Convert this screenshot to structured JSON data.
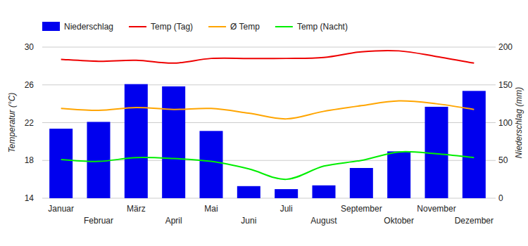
{
  "chart_data": {
    "type": "bar",
    "categories": [
      "Januar",
      "Februar",
      "März",
      "April",
      "Mai",
      "Juni",
      "Juli",
      "August",
      "September",
      "Oktober",
      "November",
      "Dezember"
    ],
    "series": [
      {
        "name": "Niederschlag",
        "type": "bar",
        "axis": "y2",
        "color": "#0000ee",
        "values": [
          92,
          101,
          151,
          148,
          89,
          16,
          12,
          17,
          40,
          62,
          121,
          142
        ]
      },
      {
        "name": "Temp (Tag)",
        "type": "line",
        "color": "#ee0000",
        "values": [
          28.7,
          28.5,
          28.6,
          28.3,
          28.8,
          28.8,
          28.8,
          28.9,
          29.5,
          29.6,
          29.0,
          28.3
        ]
      },
      {
        "name": "Ø Temp",
        "type": "line",
        "color": "#ffa500",
        "values": [
          23.5,
          23.3,
          23.6,
          23.4,
          23.5,
          23.0,
          22.4,
          23.2,
          23.8,
          24.3,
          24.0,
          23.4
        ]
      },
      {
        "name": "Temp (Nacht)",
        "type": "line",
        "color": "#00ee00",
        "values": [
          18.1,
          17.9,
          18.3,
          18.2,
          17.9,
          17.1,
          16.0,
          17.4,
          18.0,
          18.9,
          18.7,
          18.3
        ]
      }
    ],
    "y_label": "Temperatur (°C)",
    "y2_label": "Niederschlag (mm)",
    "ylim": [
      14,
      30
    ],
    "yticks": [
      14,
      18,
      22,
      26,
      30
    ],
    "y2lim": [
      0,
      200
    ],
    "y2ticks": [
      0,
      50,
      100,
      150,
      200
    ],
    "grid": true,
    "legend": "top"
  }
}
